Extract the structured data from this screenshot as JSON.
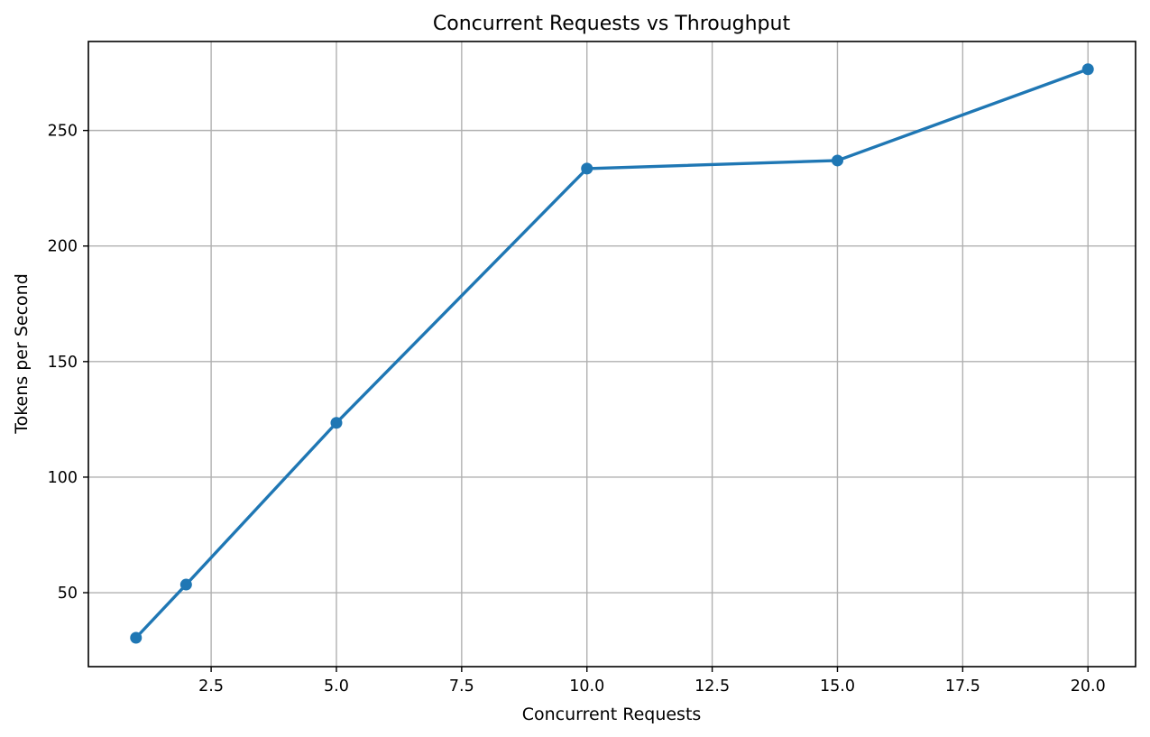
{
  "chart_data": {
    "type": "line",
    "title": "Concurrent Requests vs Throughput",
    "xlabel": "Concurrent Requests",
    "ylabel": "Tokens per Second",
    "xlim": [
      0.05,
      20.95
    ],
    "ylim": [
      18.0,
      288.5
    ],
    "xticks": [
      2.5,
      5.0,
      7.5,
      10.0,
      12.5,
      15.0,
      17.5,
      20.0
    ],
    "xtick_labels": [
      "2.5",
      "5.0",
      "7.5",
      "10.0",
      "12.5",
      "15.0",
      "17.5",
      "20.0"
    ],
    "yticks": [
      50,
      100,
      150,
      200,
      250
    ],
    "ytick_labels": [
      "50",
      "100",
      "150",
      "200",
      "250"
    ],
    "grid": true,
    "series": [
      {
        "color": "#1f77b4",
        "marker": "circle",
        "x": [
          1,
          2,
          5,
          10,
          15,
          20
        ],
        "y": [
          30.5,
          53.5,
          123.5,
          233.5,
          237.0,
          276.5
        ]
      }
    ]
  }
}
